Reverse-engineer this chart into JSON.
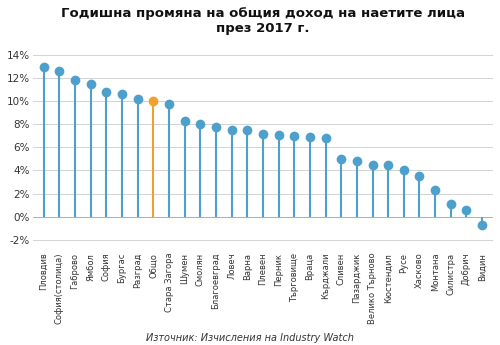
{
  "title": "Годишна промяна на общия доход на наетите лица\nпрез 2017 г.",
  "categories": [
    "Пловдив",
    "София(столица)",
    "Габрово",
    "Ямбол",
    "София",
    "Бургас",
    "Разград",
    "Общо",
    "Стара Загора",
    "Шумен",
    "Смолян",
    "Благоевград",
    "Ловеч",
    "Варна",
    "Плевен",
    "Перник",
    "Търговище",
    "Враца",
    "Кърджали",
    "Сливен",
    "Пазарджик",
    "Велико Търново",
    "Кюстендил",
    "Русе",
    "Хасково",
    "Монтана",
    "Силистра",
    "Добрич",
    "Видин"
  ],
  "values": [
    13.0,
    12.6,
    11.8,
    11.5,
    10.8,
    10.6,
    10.2,
    10.0,
    9.8,
    8.3,
    8.0,
    7.8,
    7.5,
    7.5,
    7.2,
    7.1,
    7.0,
    6.9,
    6.8,
    5.0,
    4.8,
    4.5,
    4.5,
    4.0,
    3.5,
    2.3,
    1.1,
    0.6,
    -0.7
  ],
  "bar_color": "#4d9fcc",
  "highlight_color": "#F0A030",
  "highlight_index": 7,
  "ylabel_ticks": [
    "-2%",
    "0%",
    "2%",
    "4%",
    "6%",
    "8%",
    "10%",
    "12%",
    "14%"
  ],
  "yticks": [
    -0.02,
    0.0,
    0.02,
    0.04,
    0.06,
    0.08,
    0.1,
    0.12,
    0.14
  ],
  "ylim": [
    -0.03,
    0.148
  ],
  "source": "Източник: Изчисления на Industry Watch",
  "background_color": "#ffffff",
  "title_fontsize": 9.5,
  "tick_fontsize": 6.0,
  "ytick_fontsize": 7.5,
  "markersize": 7.0,
  "stem_linewidth": 1.5
}
